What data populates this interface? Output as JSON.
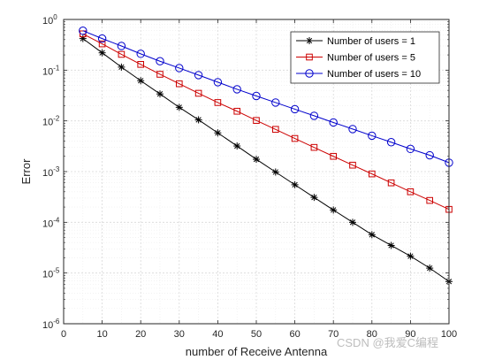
{
  "chart_data": {
    "type": "line",
    "title": "",
    "xlabel": "number of Receive Antenna",
    "ylabel": "Error",
    "xlim": [
      0,
      100
    ],
    "ylim": [
      1e-06,
      1
    ],
    "yscale": "log",
    "grid": true,
    "legend_position": "top-right",
    "x_ticks": [
      "0",
      "10",
      "20",
      "30",
      "40",
      "50",
      "60",
      "70",
      "80",
      "90",
      "100"
    ],
    "y_ticks": [
      {
        "base": "10",
        "exp": "0"
      },
      {
        "base": "10",
        "exp": "-1"
      },
      {
        "base": "10",
        "exp": "-2"
      },
      {
        "base": "10",
        "exp": "-3"
      },
      {
        "base": "10",
        "exp": "-4"
      },
      {
        "base": "10",
        "exp": "-5"
      },
      {
        "base": "10",
        "exp": "-6"
      }
    ],
    "x": [
      5,
      10,
      15,
      20,
      25,
      30,
      35,
      40,
      45,
      50,
      55,
      60,
      65,
      70,
      75,
      80,
      85,
      90,
      95,
      100
    ],
    "series": [
      {
        "name": "Number of users = 1",
        "color": "#000000",
        "marker": "asterisk",
        "values": [
          0.42,
          0.22,
          0.115,
          0.062,
          0.034,
          0.0185,
          0.0105,
          0.0058,
          0.0032,
          0.00175,
          0.00098,
          0.00055,
          0.00031,
          0.000175,
          0.0001,
          5.7e-05,
          3.5e-05,
          2.15e-05,
          1.25e-05,
          6.8e-06
        ]
      },
      {
        "name": "Number of users = 5",
        "color": "#cc0000",
        "marker": "square",
        "values": [
          0.52,
          0.33,
          0.205,
          0.13,
          0.083,
          0.054,
          0.035,
          0.023,
          0.0155,
          0.0102,
          0.0068,
          0.0045,
          0.003,
          0.002,
          0.00134,
          0.0009,
          0.0006,
          0.0004,
          0.00027,
          0.00018
        ]
      },
      {
        "name": "Number of users = 10",
        "color": "#0000cc",
        "marker": "circle",
        "values": [
          0.6,
          0.42,
          0.3,
          0.21,
          0.15,
          0.11,
          0.08,
          0.058,
          0.042,
          0.031,
          0.023,
          0.017,
          0.0126,
          0.0093,
          0.0069,
          0.0051,
          0.0038,
          0.0028,
          0.0021,
          0.0015
        ]
      }
    ]
  },
  "watermark": "CSDN @我爱C编程"
}
